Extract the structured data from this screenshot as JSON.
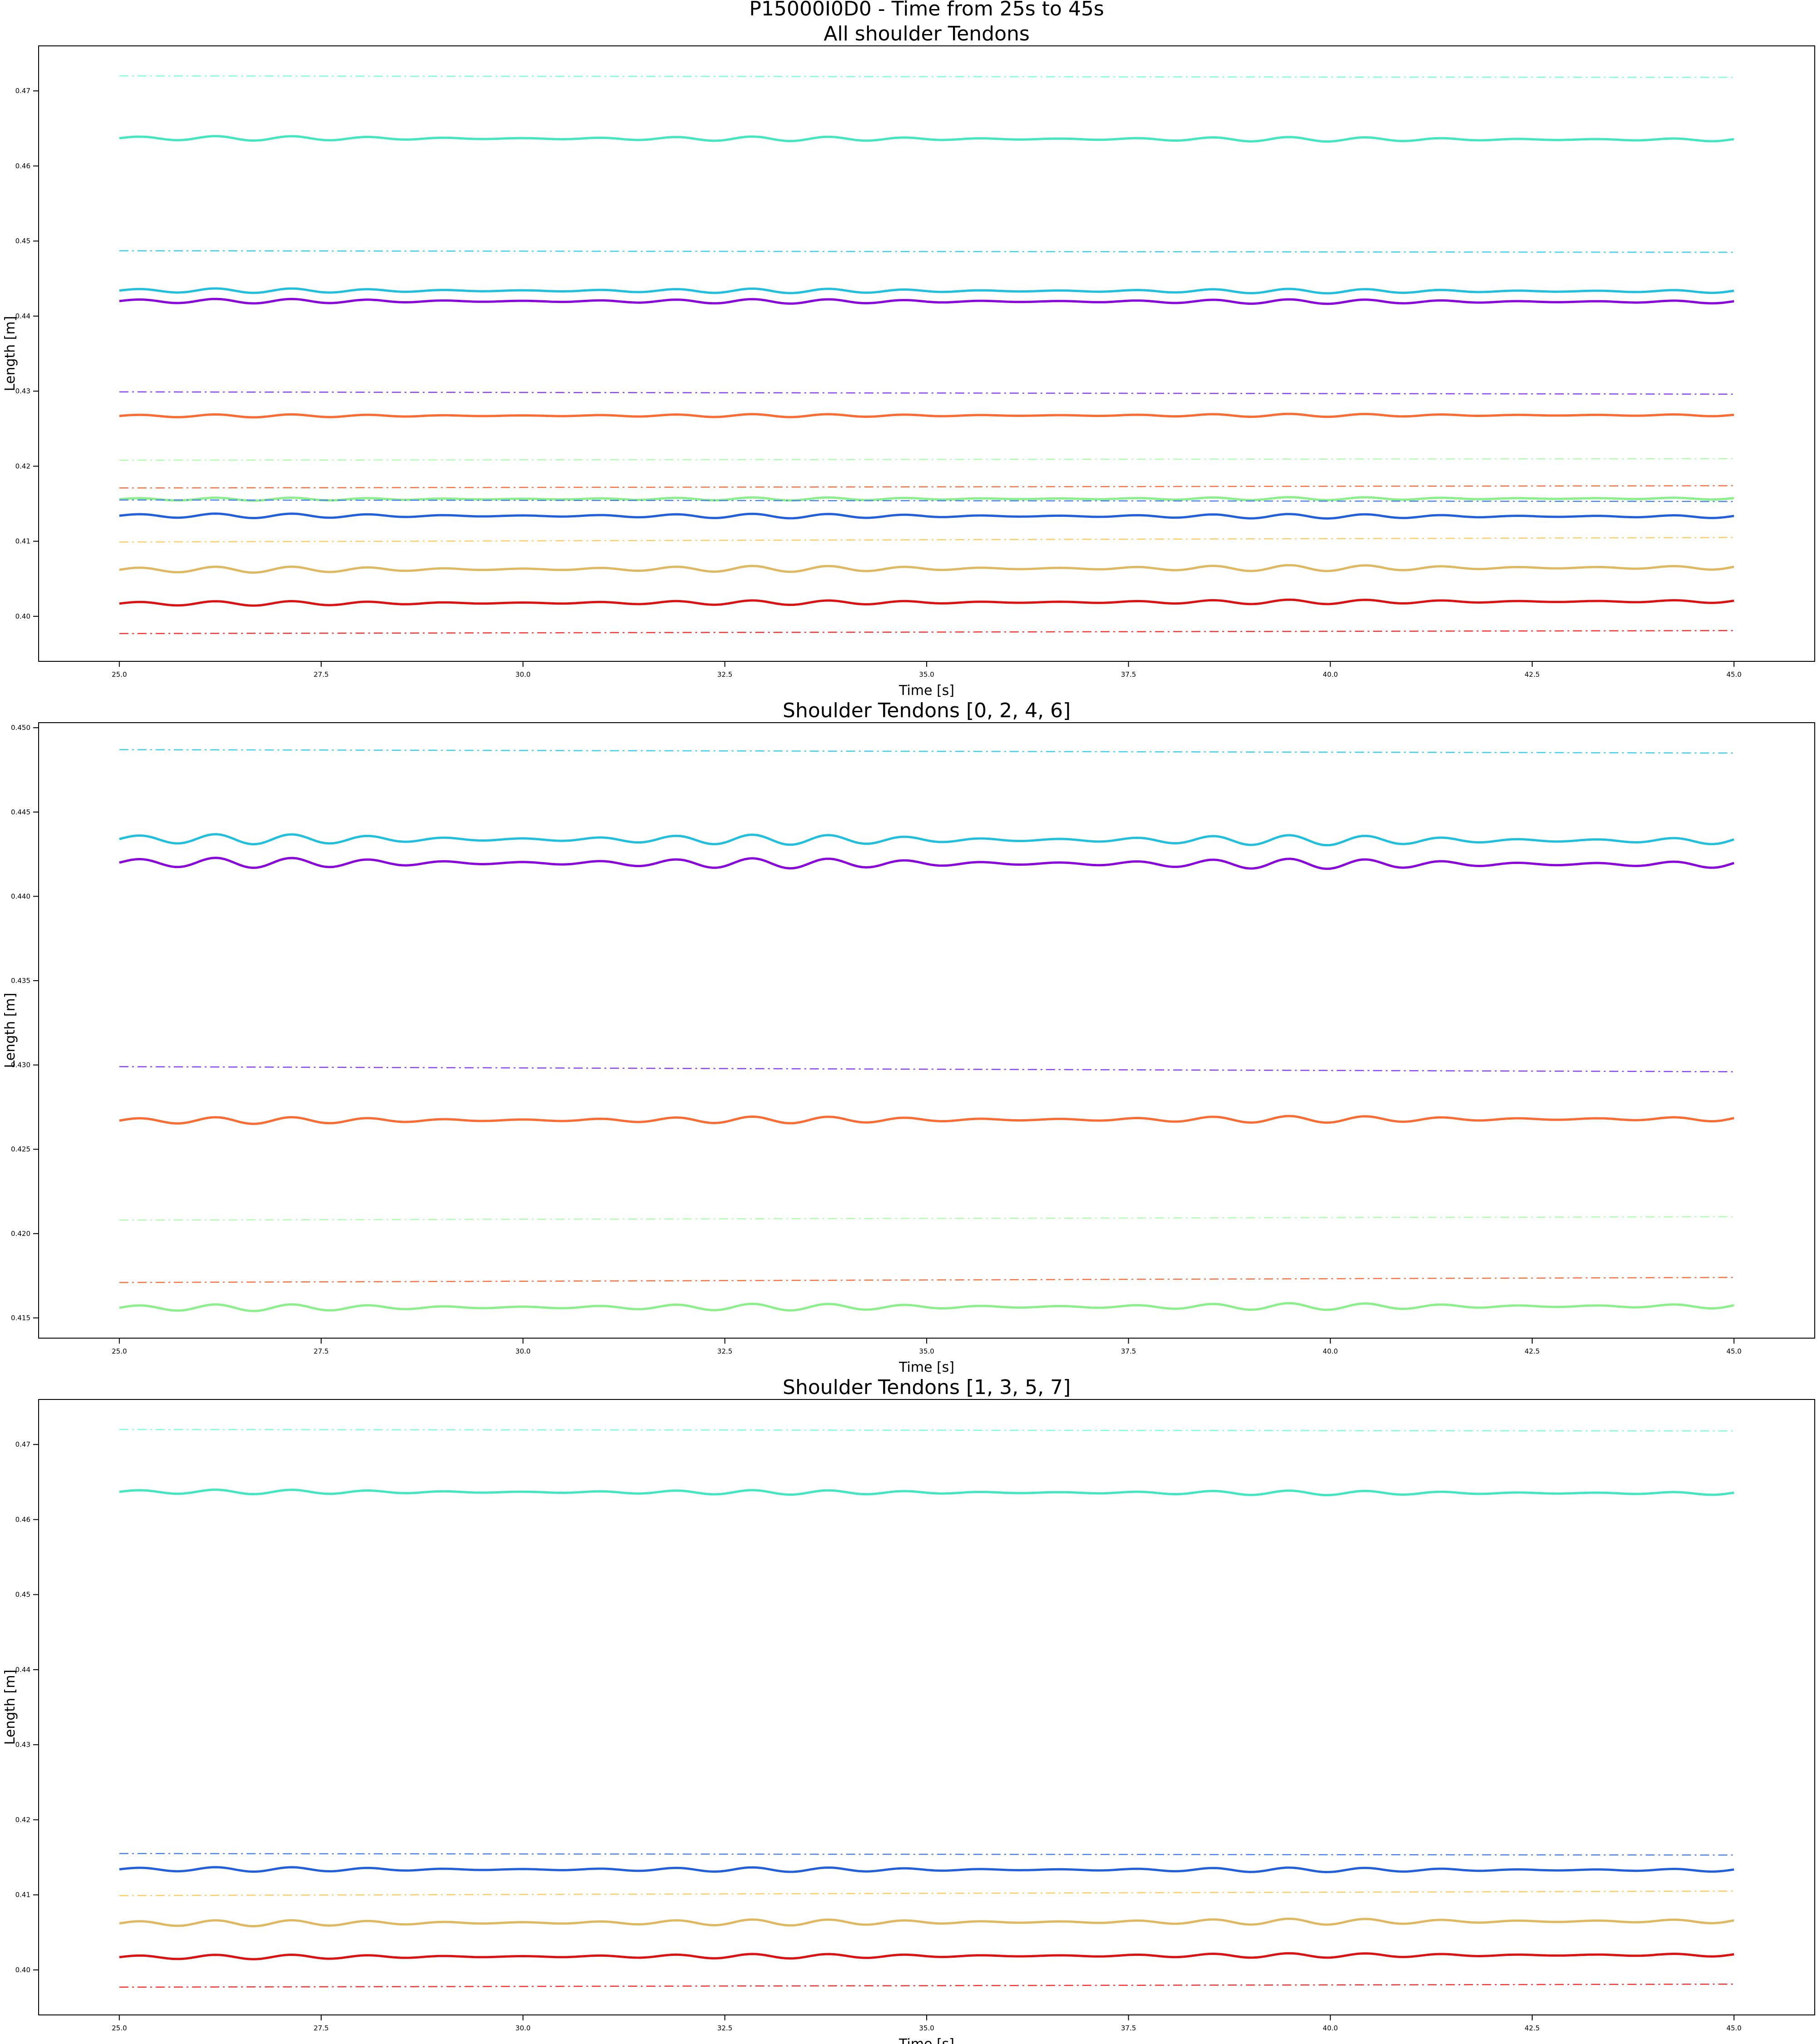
{
  "figure": {
    "suptitle": "P15000I0D0 - Time from 25s to 45s"
  },
  "chart_data": [
    {
      "type": "line",
      "title": "All shoulder Tendons",
      "xlabel": "Time [s]",
      "ylabel": "Length [m]",
      "xlim": [
        24.0,
        46.0
      ],
      "ylim": [
        0.394,
        0.476
      ],
      "xticks": [
        25.0,
        27.5,
        30.0,
        32.5,
        35.0,
        37.5,
        40.0,
        42.5,
        45.0
      ],
      "xtick_labels": [
        "25.0",
        "27.5",
        "30.0",
        "32.5",
        "35.0",
        "37.5",
        "40.0",
        "42.5",
        "45.0"
      ],
      "yticks": [
        0.4,
        0.41,
        0.42,
        0.43,
        0.44,
        0.45,
        0.46,
        0.47
      ],
      "ytick_labels": [
        "0.40",
        "0.41",
        "0.42",
        "0.43",
        "0.44",
        "0.45",
        "0.46",
        "0.47"
      ],
      "grid": false,
      "legend": false,
      "series": [
        {
          "x": [
            25,
            45
          ],
          "values": [
            0.472,
            0.4718
          ],
          "color": "#80ffdb",
          "style": "dashdot"
        },
        {
          "x": [
            25,
            45
          ],
          "values": [
            0.4637,
            0.4635
          ],
          "color": "#40e8c0",
          "style": "solid",
          "wiggle": 0.0003
        },
        {
          "x": [
            25,
            45
          ],
          "values": [
            0.4487,
            0.4485
          ],
          "color": "#3bd0f0",
          "style": "dashdot"
        },
        {
          "x": [
            25,
            45
          ],
          "values": [
            0.4434,
            0.4433
          ],
          "color": "#1ec0e0",
          "style": "solid",
          "wiggle": 0.0003
        },
        {
          "x": [
            25,
            45
          ],
          "values": [
            0.442,
            0.4419
          ],
          "color": "#8a00e0",
          "style": "solid",
          "wiggle": 0.0003
        },
        {
          "x": [
            25,
            45
          ],
          "values": [
            0.4299,
            0.4296
          ],
          "color": "#8a40ff",
          "style": "dashdot"
        },
        {
          "x": [
            25,
            45
          ],
          "values": [
            0.4267,
            0.4268
          ],
          "color": "#ff6a30",
          "style": "solid",
          "wiggle": 0.0002
        },
        {
          "x": [
            25,
            45
          ],
          "values": [
            0.4208,
            0.421
          ],
          "color": "#b0ffb0",
          "style": "dashdot"
        },
        {
          "x": [
            25,
            45
          ],
          "values": [
            0.4171,
            0.4174
          ],
          "color": "#ff7040",
          "style": "dashdot"
        },
        {
          "x": [
            25,
            45
          ],
          "values": [
            0.4156,
            0.4157
          ],
          "color": "#8af08a",
          "style": "solid",
          "wiggle": 0.0002
        },
        {
          "x": [
            25,
            45
          ],
          "values": [
            0.4155,
            0.4153
          ],
          "color": "#4a80f0",
          "style": "dashdot"
        },
        {
          "x": [
            25,
            45
          ],
          "values": [
            0.4134,
            0.4133
          ],
          "color": "#2060e0",
          "style": "solid",
          "wiggle": 0.0003
        },
        {
          "x": [
            25,
            45
          ],
          "values": [
            0.4099,
            0.4105
          ],
          "color": "#ffcc66",
          "style": "dashdot"
        },
        {
          "x": [
            25,
            45
          ],
          "values": [
            0.4062,
            0.4065
          ],
          "color": "#e0b860",
          "style": "solid",
          "wiggle": 0.0004
        },
        {
          "x": [
            25,
            45
          ],
          "values": [
            0.4017,
            0.402
          ],
          "color": "#e01010",
          "style": "solid",
          "wiggle": 0.0003
        },
        {
          "x": [
            25,
            45
          ],
          "values": [
            0.3977,
            0.3981
          ],
          "color": "#ff3030",
          "style": "dashdot"
        }
      ]
    },
    {
      "type": "line",
      "title": "Shoulder Tendons [0, 2, 4, 6]",
      "xlabel": "Time [s]",
      "ylabel": "Length [m]",
      "xlim": [
        24.0,
        46.0
      ],
      "ylim": [
        0.4138,
        0.4503
      ],
      "xticks": [
        25.0,
        27.5,
        30.0,
        32.5,
        35.0,
        37.5,
        40.0,
        42.5,
        45.0
      ],
      "xtick_labels": [
        "25.0",
        "27.5",
        "30.0",
        "32.5",
        "35.0",
        "37.5",
        "40.0",
        "42.5",
        "45.0"
      ],
      "yticks": [
        0.415,
        0.42,
        0.425,
        0.43,
        0.435,
        0.44,
        0.445,
        0.45
      ],
      "ytick_labels": [
        "0.415",
        "0.420",
        "0.425",
        "0.430",
        "0.435",
        "0.440",
        "0.445",
        "0.450"
      ],
      "grid": false,
      "legend": false,
      "series": [
        {
          "x": [
            25,
            45
          ],
          "values": [
            0.4487,
            0.4485
          ],
          "color": "#3bd0f0",
          "style": "dashdot"
        },
        {
          "x": [
            25,
            45
          ],
          "values": [
            0.4434,
            0.4433
          ],
          "color": "#1ec0e0",
          "style": "solid",
          "wiggle": 0.0003
        },
        {
          "x": [
            25,
            45
          ],
          "values": [
            0.442,
            0.4419
          ],
          "color": "#8a00e0",
          "style": "solid",
          "wiggle": 0.0003
        },
        {
          "x": [
            25,
            45
          ],
          "values": [
            0.4299,
            0.4296
          ],
          "color": "#8a40ff",
          "style": "dashdot"
        },
        {
          "x": [
            25,
            45
          ],
          "values": [
            0.4267,
            0.4268
          ],
          "color": "#ff6a30",
          "style": "solid",
          "wiggle": 0.0002
        },
        {
          "x": [
            25,
            45
          ],
          "values": [
            0.4208,
            0.421
          ],
          "color": "#b0ffb0",
          "style": "dashdot"
        },
        {
          "x": [
            25,
            45
          ],
          "values": [
            0.4171,
            0.4174
          ],
          "color": "#ff7040",
          "style": "dashdot"
        },
        {
          "x": [
            25,
            45
          ],
          "values": [
            0.4156,
            0.4157
          ],
          "color": "#8af08a",
          "style": "solid",
          "wiggle": 0.0002
        }
      ]
    },
    {
      "type": "line",
      "title": "Shoulder Tendons  [1, 3, 5, 7]",
      "xlabel": "Time [s]",
      "ylabel": "Length [m]",
      "xlim": [
        24.0,
        46.0
      ],
      "ylim": [
        0.394,
        0.476
      ],
      "xticks": [
        25.0,
        27.5,
        30.0,
        32.5,
        35.0,
        37.5,
        40.0,
        42.5,
        45.0
      ],
      "xtick_labels": [
        "25.0",
        "27.5",
        "30.0",
        "32.5",
        "35.0",
        "37.5",
        "40.0",
        "42.5",
        "45.0"
      ],
      "yticks": [
        0.4,
        0.41,
        0.42,
        0.43,
        0.44,
        0.45,
        0.46,
        0.47
      ],
      "ytick_labels": [
        "0.40",
        "0.41",
        "0.42",
        "0.43",
        "0.44",
        "0.45",
        "0.46",
        "0.47"
      ],
      "grid": false,
      "legend": false,
      "series": [
        {
          "x": [
            25,
            45
          ],
          "values": [
            0.472,
            0.4718
          ],
          "color": "#80ffdb",
          "style": "dashdot"
        },
        {
          "x": [
            25,
            45
          ],
          "values": [
            0.4637,
            0.4635
          ],
          "color": "#40e8c0",
          "style": "solid",
          "wiggle": 0.0003
        },
        {
          "x": [
            25,
            45
          ],
          "values": [
            0.4155,
            0.4153
          ],
          "color": "#4a80f0",
          "style": "dashdot"
        },
        {
          "x": [
            25,
            45
          ],
          "values": [
            0.4134,
            0.4133
          ],
          "color": "#2060e0",
          "style": "solid",
          "wiggle": 0.0003
        },
        {
          "x": [
            25,
            45
          ],
          "values": [
            0.4099,
            0.4105
          ],
          "color": "#ffcc66",
          "style": "dashdot"
        },
        {
          "x": [
            25,
            45
          ],
          "values": [
            0.4062,
            0.4065
          ],
          "color": "#e0b860",
          "style": "solid",
          "wiggle": 0.0004
        },
        {
          "x": [
            25,
            45
          ],
          "values": [
            0.4017,
            0.402
          ],
          "color": "#e01010",
          "style": "solid",
          "wiggle": 0.0003
        },
        {
          "x": [
            25,
            45
          ],
          "values": [
            0.3977,
            0.3981
          ],
          "color": "#ff3030",
          "style": "dashdot"
        }
      ]
    }
  ]
}
